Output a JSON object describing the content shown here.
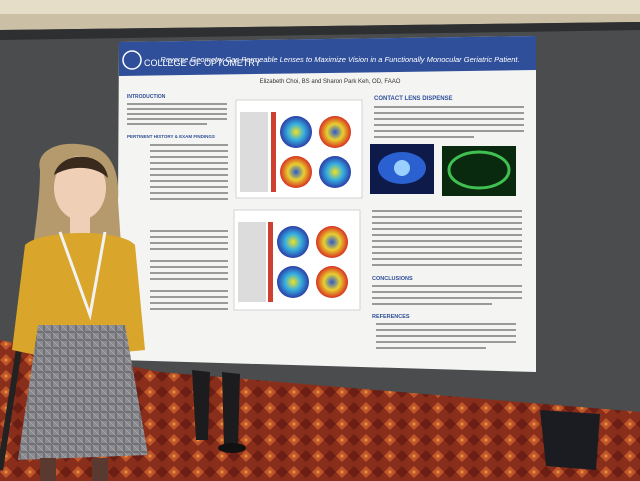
{
  "poster": {
    "logo": "COLLEGE OF OPTOMETRY",
    "title": "Reverse Geometry Gas Permeable Lenses to Maximize Vision in a Functionally Monocular Geriatric Patient.",
    "authors": "Elizabeth Choi, BS and Sharon Park Keh, OD, FAAO",
    "sections": [
      "INTRODUCTION",
      "PERTINENT HISTORY & EXAM FINDINGS",
      "CONTACT LENS DISPENSE",
      "CONCLUSIONS",
      "REFERENCES"
    ]
  }
}
